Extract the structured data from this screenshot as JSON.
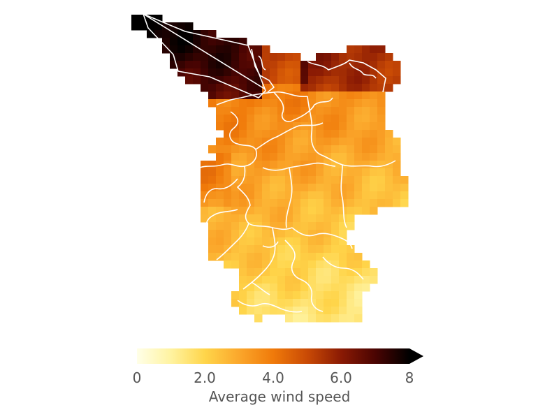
{
  "map": {
    "variable": "Average wind speed",
    "colormap": [
      "#ffffe8",
      "#fff3a0",
      "#ffd54a",
      "#fba72b",
      "#f07a0a",
      "#c94a05",
      "#8a1a04",
      "#4a0402",
      "#000000"
    ],
    "cell_grid": "regular raster tiles"
  },
  "colorbar": {
    "label": "Average wind speed",
    "min": 0,
    "max": 8,
    "extend": "max",
    "ticks": [
      {
        "value": 0,
        "label": "0"
      },
      {
        "value": 2,
        "label": "2.0"
      },
      {
        "value": 4,
        "label": "4.0"
      },
      {
        "value": 6,
        "label": "6.0"
      },
      {
        "value": 8,
        "label": "8"
      }
    ]
  }
}
